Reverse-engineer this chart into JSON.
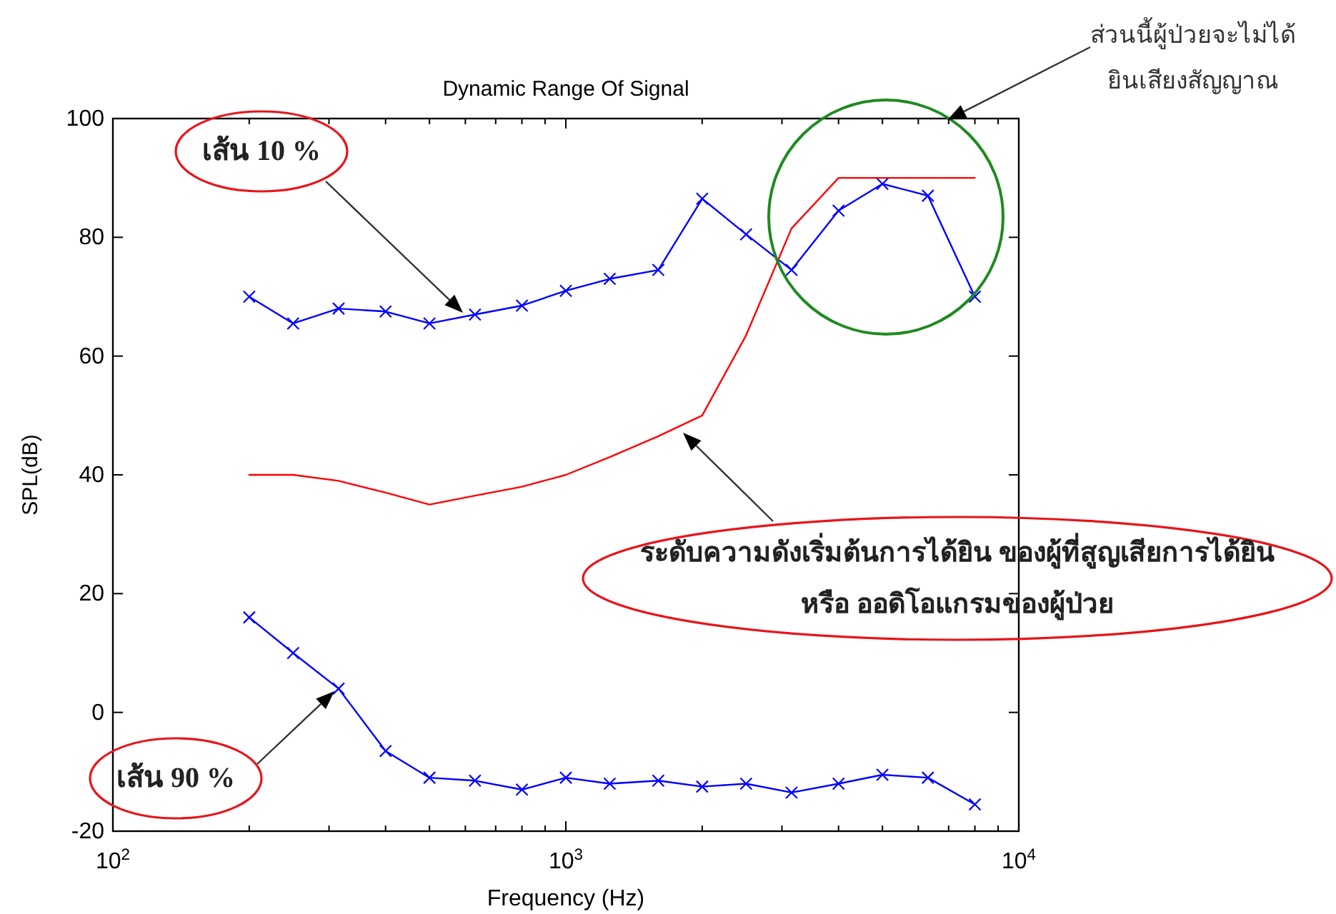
{
  "chart_data": {
    "type": "line",
    "title": "Dynamic Range Of Signal",
    "xlabel": "Frequency (Hz)",
    "ylabel": "SPL(dB)",
    "x": [
      200,
      250,
      315,
      400,
      500,
      630,
      800,
      1000,
      1250,
      1600,
      2000,
      2500,
      3150,
      4000,
      5000,
      6300,
      8000
    ],
    "series": [
      {
        "color": "#0000ff",
        "marker": "cross",
        "values": [
          70,
          65.5,
          68,
          67.5,
          65.5,
          67,
          68.5,
          71,
          73,
          74.5,
          86.5,
          80.5,
          74.5,
          84.5,
          89,
          87,
          70
        ]
      },
      {
        "color": "#ff0000",
        "values": [
          40,
          40,
          39,
          37,
          35,
          36.5,
          38,
          40,
          43,
          46.5,
          50,
          63.5,
          81.5,
          90,
          90,
          90,
          90
        ]
      },
      {
        "color": "#0000ff",
        "marker": "cross",
        "values": [
          16,
          10,
          4,
          -6.5,
          -11,
          -11.5,
          -13,
          -11,
          -12,
          -11.5,
          -12.5,
          -12,
          -13.5,
          -12,
          -10.5,
          -11,
          -15.5
        ]
      }
    ],
    "xlim": [
      100,
      10000
    ],
    "ylim": [
      -20,
      100
    ],
    "log": "x",
    "xticks": [
      {
        "value": 100,
        "label": "10$^{2}$"
      },
      {
        "value": 200,
        "label": null
      },
      {
        "value": 300,
        "label": null
      },
      {
        "value": 400,
        "label": null
      },
      {
        "value": 500,
        "label": null
      },
      {
        "value": 600,
        "label": null
      },
      {
        "value": 700,
        "label": null
      },
      {
        "value": 800,
        "label": null
      },
      {
        "value": 900,
        "label": null
      },
      {
        "value": 1000,
        "label": "10$^{3}$"
      },
      {
        "value": 2000,
        "label": null
      },
      {
        "value": 3000,
        "label": null
      },
      {
        "value": 4000,
        "label": null
      },
      {
        "value": 5000,
        "label": null
      },
      {
        "value": 6000,
        "label": null
      },
      {
        "value": 7000,
        "label": null
      },
      {
        "value": 8000,
        "label": null
      },
      {
        "value": 9000,
        "label": null
      },
      {
        "value": 10000,
        "label": "10$^{4}$"
      }
    ],
    "yticks": [
      -20,
      0,
      20,
      40,
      60,
      80,
      100
    ],
    "annotations": [
      "เส้น 10 %",
      "เส้น 90 %",
      "ระดับความดังเริ่มต้นการได้ยิน ของผู้ที่สูญเสียการได้ยิน\nหรือ ออดิโอแกรมของผู้ป่วย",
      "ส่วนนี้ผู้ป่วยจะไม่ได้\nยินเสียงสัญญาณ"
    ]
  }
}
